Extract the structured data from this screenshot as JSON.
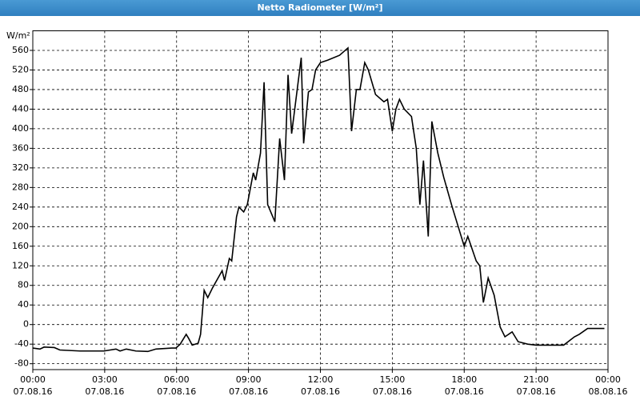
{
  "chart_data": {
    "type": "line",
    "title": "Netto Radiometer [W/m²]",
    "y_unit": "W/m²",
    "x": [
      0,
      0.3,
      0.47,
      0.9,
      1.13,
      1.97,
      2.97,
      3.47,
      3.64,
      3.9,
      4.3,
      4.8,
      5.14,
      5.8,
      5.97,
      6.15,
      6.4,
      6.5,
      6.65,
      6.9,
      7.0,
      7.15,
      7.3,
      7.5,
      7.9,
      8.0,
      8.2,
      8.3,
      8.5,
      8.6,
      8.8,
      8.95,
      9.2,
      9.3,
      9.5,
      9.65,
      9.8,
      10.1,
      10.3,
      10.5,
      10.65,
      10.8,
      11.2,
      11.3,
      11.5,
      11.65,
      11.8,
      12.0,
      12.3,
      12.8,
      13.15,
      13.3,
      13.5,
      13.65,
      13.85,
      14.0,
      14.3,
      14.65,
      14.8,
      15.0,
      15.15,
      15.3,
      15.5,
      15.8,
      16.0,
      16.15,
      16.3,
      16.5,
      16.65,
      16.9,
      17.15,
      17.5,
      17.75,
      18.0,
      18.15,
      18.5,
      18.65,
      18.8,
      19.0,
      19.25,
      19.5,
      19.7,
      20.0,
      20.25,
      20.65,
      21.0,
      22.15,
      22.6,
      22.8,
      23.15,
      23.85
    ],
    "series": [
      {
        "name": "Netto Radiometer",
        "color": "#000000",
        "values": [
          -48,
          -50,
          -46,
          -47,
          -52,
          -54,
          -54,
          -50,
          -54,
          -50,
          -54,
          -55,
          -50,
          -48,
          -48,
          -40,
          -20,
          -28,
          -42,
          -38,
          -20,
          70,
          55,
          75,
          110,
          90,
          135,
          130,
          220,
          240,
          230,
          245,
          310,
          295,
          350,
          495,
          245,
          210,
          380,
          295,
          510,
          390,
          545,
          370,
          475,
          480,
          520,
          535,
          540,
          550,
          565,
          395,
          480,
          480,
          535,
          520,
          470,
          455,
          460,
          395,
          440,
          460,
          440,
          425,
          360,
          245,
          335,
          180,
          415,
          350,
          300,
          240,
          200,
          160,
          180,
          130,
          120,
          45,
          95,
          60,
          -5,
          -25,
          -15,
          -35,
          -40,
          -42,
          -42,
          -25,
          -20,
          -8,
          -8
        ]
      }
    ],
    "xlim": [
      0,
      24
    ],
    "ylim": [
      -92,
      600
    ],
    "xticks": [
      {
        "value": 0,
        "label": "00:00"
      },
      {
        "value": 3,
        "label": "03:00"
      },
      {
        "value": 6,
        "label": "06:00"
      },
      {
        "value": 9,
        "label": "09:00"
      },
      {
        "value": 12,
        "label": "12:00"
      },
      {
        "value": 15,
        "label": "15:00"
      },
      {
        "value": 18,
        "label": "18:00"
      },
      {
        "value": 21,
        "label": "21:00"
      },
      {
        "value": 24,
        "label": "00:00"
      }
    ],
    "xtick_dates": [
      "07.08.16",
      "07.08.16",
      "07.08.16",
      "07.08.16",
      "07.08.16",
      "07.08.16",
      "07.08.16",
      "07.08.16",
      "08.08.16"
    ],
    "yticks": [
      -80,
      -40,
      0,
      40,
      80,
      120,
      160,
      200,
      240,
      280,
      320,
      360,
      400,
      440,
      480,
      520,
      560
    ],
    "grid": true
  }
}
